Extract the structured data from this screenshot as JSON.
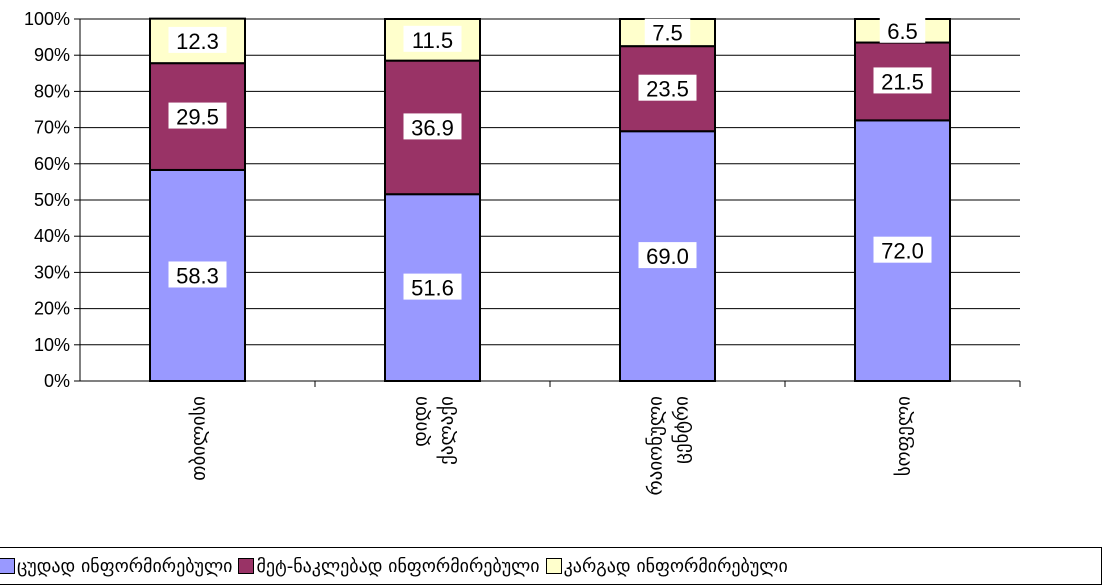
{
  "chart_data": {
    "type": "bar",
    "stacked": true,
    "categories": [
      "თბილისი",
      "დიდი ქალაქი",
      "რაიონული ცენტრი",
      "სოფელი"
    ],
    "category_lines": [
      [
        "თბილისი"
      ],
      [
        "დიდი",
        "ქალაქი"
      ],
      [
        "რაიონული",
        "ცენტრი"
      ],
      [
        "სოფელი"
      ]
    ],
    "series": [
      {
        "name": "ცუდად ინფორმირებული",
        "values": [
          58.3,
          51.6,
          69.0,
          72.0
        ],
        "labels": [
          "58.3",
          "51.6",
          "69.0",
          "72.0"
        ],
        "color": "#9999ff"
      },
      {
        "name": "მეტ-ნაკლებად ინფორმირებული",
        "values": [
          29.5,
          36.9,
          23.5,
          21.5
        ],
        "labels": [
          "29.5",
          "36.9",
          "23.5",
          "21.5"
        ],
        "color": "#993366"
      },
      {
        "name": "კარგად ინფორმირებული",
        "values": [
          12.3,
          11.5,
          7.5,
          6.5
        ],
        "labels": [
          "12.3",
          "11.5",
          "7.5",
          "6.5"
        ],
        "color": "#ffffcc"
      }
    ],
    "yticks": [
      "0%",
      "10%",
      "20%",
      "30%",
      "40%",
      "50%",
      "60%",
      "70%",
      "80%",
      "90%",
      "100%"
    ],
    "ylim": [
      0,
      100
    ],
    "grid": true,
    "legend_position": "bottom"
  }
}
